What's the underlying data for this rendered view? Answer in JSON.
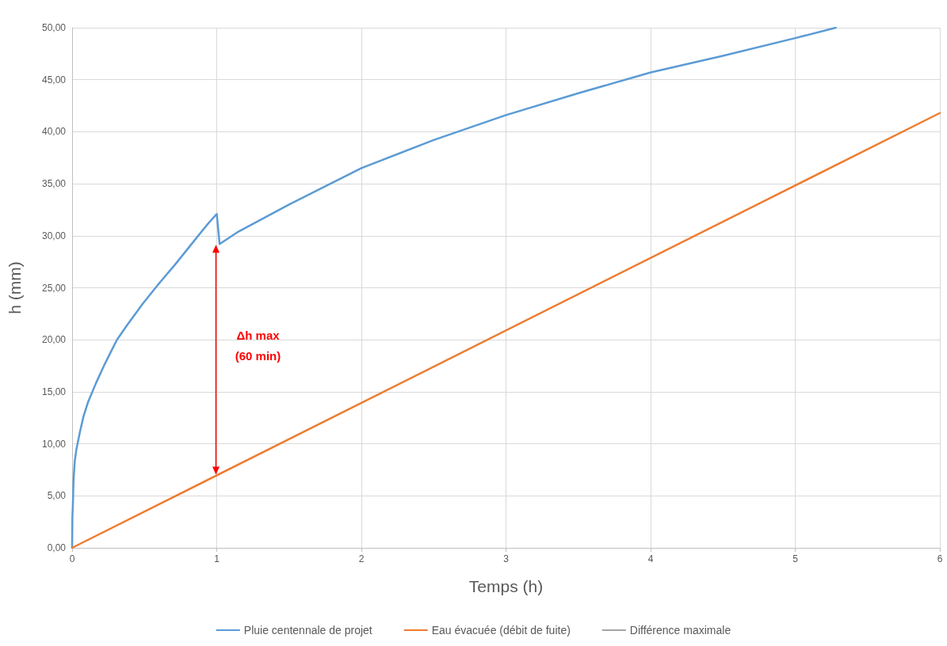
{
  "chart_data": {
    "type": "line",
    "xlabel": "Temps (h)",
    "ylabel": "h (mm)",
    "xlim": [
      0,
      6
    ],
    "xticks": [
      0,
      1,
      2,
      3,
      4,
      5,
      6
    ],
    "ylim": [
      0,
      50
    ],
    "yticks": [
      {
        "value": 0,
        "label": "0,00"
      },
      {
        "value": 5,
        "label": "5,00"
      },
      {
        "value": 10,
        "label": "10,00"
      },
      {
        "value": 15,
        "label": "15,00"
      },
      {
        "value": 20,
        "label": "20,00"
      },
      {
        "value": 25,
        "label": "25,00"
      },
      {
        "value": 30,
        "label": "30,00"
      },
      {
        "value": 35,
        "label": "35,00"
      },
      {
        "value": 40,
        "label": "40,00"
      },
      {
        "value": 45,
        "label": "45,00"
      },
      {
        "value": 50,
        "label": "50,00"
      }
    ],
    "series": [
      {
        "name": "Pluie centennale de projet",
        "color": "#5b9bd5",
        "x": [
          0,
          0.002,
          0.005,
          0.01,
          0.018,
          0.03,
          0.055,
          0.08,
          0.11,
          0.164,
          0.22,
          0.27,
          0.31,
          0.38,
          0.49,
          0.6,
          0.71,
          0.82,
          0.93,
          1.0,
          1.02,
          1.15,
          1.5,
          2.0,
          2.5,
          3.0,
          3.5,
          4.0,
          4.5,
          5.0,
          5.28
        ],
        "values": [
          0,
          3,
          4,
          6.5,
          8.3,
          9.5,
          11.2,
          12.7,
          14,
          15.8,
          17.5,
          18.9,
          20,
          21.4,
          23.5,
          25.4,
          27.2,
          29.1,
          31,
          32.1,
          29.2,
          30.4,
          33.0,
          36.5,
          39.2,
          41.6,
          43.7,
          45.7,
          47.3,
          49.0,
          50.0
        ]
      },
      {
        "name": "Eau évacuée (débit de fuite)",
        "color": "#ed7d31",
        "x": [
          0,
          6
        ],
        "values": [
          0,
          41.8
        ]
      },
      {
        "name": "Différence maximale",
        "color": "#a5a5a5"
      }
    ],
    "annotations": [
      "Δh max\n(60 min)"
    ],
    "grid": true,
    "legend": "bottom",
    "marker": "none",
    "line_style": "solid"
  }
}
